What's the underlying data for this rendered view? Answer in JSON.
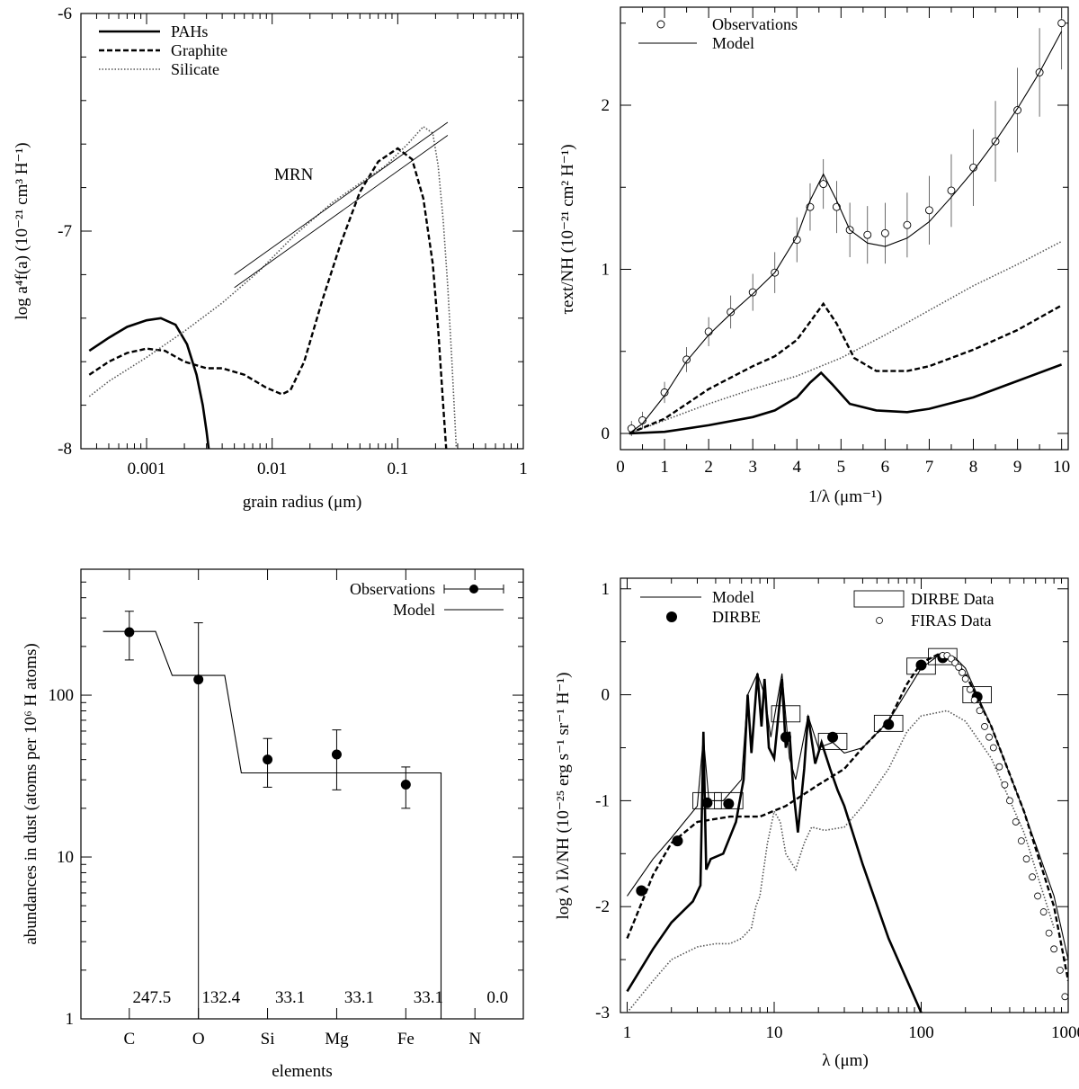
{
  "chart_data": [
    {
      "type": "line",
      "title": "",
      "xlabel": "grain radius  (μm)",
      "ylabel": "log  a⁴f(a)  (10⁻²¹ cm³ H⁻¹)",
      "x_scale": "log",
      "xlim": [
        0.0003,
        1
      ],
      "ylim": [
        -8,
        -6
      ],
      "x_ticks": [
        "0.001",
        "0.01",
        "0.1",
        "1"
      ],
      "y_ticks": [
        "-8",
        "-7",
        "-6"
      ],
      "legend_position": "top-left",
      "annotation": "MRN",
      "series": [
        {
          "name": "PAHs",
          "style": "solid-thick",
          "x": [
            0.00035,
            0.0005,
            0.0007,
            0.001,
            0.0013,
            0.0017,
            0.0021,
            0.0025,
            0.0028,
            0.003,
            0.0032,
            0.0034
          ],
          "y": [
            -7.55,
            -7.49,
            -7.44,
            -7.41,
            -7.4,
            -7.43,
            -7.52,
            -7.66,
            -7.8,
            -7.92,
            -8.05,
            -8.2
          ]
        },
        {
          "name": "Graphite",
          "style": "dashed",
          "x": [
            0.00035,
            0.0005,
            0.0007,
            0.001,
            0.0014,
            0.002,
            0.003,
            0.004,
            0.006,
            0.009,
            0.012,
            0.014,
            0.018,
            0.025,
            0.035,
            0.05,
            0.07,
            0.1,
            0.13,
            0.16,
            0.19,
            0.21,
            0.23,
            0.25,
            0.27
          ],
          "y": [
            -7.66,
            -7.6,
            -7.56,
            -7.54,
            -7.55,
            -7.6,
            -7.63,
            -7.63,
            -7.66,
            -7.72,
            -7.75,
            -7.73,
            -7.6,
            -7.32,
            -7.06,
            -6.82,
            -6.68,
            -6.62,
            -6.67,
            -6.85,
            -7.15,
            -7.45,
            -7.8,
            -8.1,
            -8.4
          ]
        },
        {
          "name": "Silicate",
          "style": "dotted",
          "x": [
            0.00035,
            0.0005,
            0.001,
            0.002,
            0.004,
            0.008,
            0.015,
            0.03,
            0.05,
            0.08,
            0.12,
            0.16,
            0.19,
            0.21,
            0.23,
            0.25,
            0.27,
            0.29,
            0.31
          ],
          "y": [
            -7.76,
            -7.69,
            -7.58,
            -7.46,
            -7.33,
            -7.18,
            -7.02,
            -6.87,
            -6.78,
            -6.7,
            -6.6,
            -6.52,
            -6.55,
            -6.7,
            -6.95,
            -7.25,
            -7.6,
            -7.95,
            -8.3
          ]
        },
        {
          "name": "MRN",
          "style": "thin-pair",
          "x": [
            0.005,
            0.25
          ],
          "y": [
            -7.26,
            -6.56
          ]
        }
      ]
    },
    {
      "type": "line",
      "title": "",
      "xlabel": "1/λ  (μm⁻¹)",
      "ylabel": "τext/NH  (10⁻²¹ cm² H⁻¹)",
      "xlim": [
        0,
        10
      ],
      "ylim": [
        0,
        2.6
      ],
      "x_ticks": [
        "0",
        "1",
        "2",
        "3",
        "4",
        "5",
        "6",
        "7",
        "8",
        "9",
        "10"
      ],
      "y_ticks": [
        "0",
        "1",
        "2"
      ],
      "legend_position": "top-left",
      "series": [
        {
          "name": "Observations",
          "style": "open-circles-with-errorbars",
          "x": [
            0.25,
            0.5,
            1.0,
            1.5,
            2.0,
            2.5,
            3.0,
            3.5,
            4.0,
            4.3,
            4.6,
            4.9,
            5.2,
            5.6,
            6.0,
            6.5,
            7.0,
            7.5,
            8.0,
            8.5,
            9.0,
            9.5,
            10.0
          ],
          "y": [
            0.03,
            0.08,
            0.25,
            0.45,
            0.62,
            0.74,
            0.86,
            0.98,
            1.18,
            1.38,
            1.52,
            1.38,
            1.24,
            1.21,
            1.22,
            1.27,
            1.36,
            1.48,
            1.62,
            1.78,
            1.97,
            2.2,
            2.5
          ]
        },
        {
          "name": "Model",
          "style": "solid-thin",
          "x": [
            0.2,
            0.5,
            1.0,
            1.5,
            2.0,
            2.5,
            3.0,
            3.5,
            4.0,
            4.3,
            4.6,
            4.9,
            5.2,
            5.6,
            6.0,
            6.5,
            7.0,
            7.5,
            8.0,
            8.5,
            9.0,
            9.5,
            10.0
          ],
          "y": [
            0.0,
            0.06,
            0.23,
            0.44,
            0.6,
            0.73,
            0.85,
            0.98,
            1.2,
            1.42,
            1.58,
            1.42,
            1.24,
            1.16,
            1.14,
            1.19,
            1.29,
            1.44,
            1.6,
            1.78,
            1.98,
            2.2,
            2.45
          ]
        },
        {
          "name": "Silicate",
          "style": "dotted",
          "x": [
            0.2,
            1,
            2,
            3,
            4,
            5,
            6,
            7,
            8,
            9,
            10
          ],
          "y": [
            0.0,
            0.08,
            0.18,
            0.27,
            0.35,
            0.46,
            0.6,
            0.75,
            0.9,
            1.03,
            1.17
          ]
        },
        {
          "name": "Graphite",
          "style": "dashed",
          "x": [
            0.2,
            1,
            2,
            3,
            3.5,
            4.0,
            4.3,
            4.6,
            4.9,
            5.3,
            5.8,
            6.5,
            7,
            8,
            9,
            10
          ],
          "y": [
            0.0,
            0.09,
            0.27,
            0.41,
            0.47,
            0.57,
            0.68,
            0.79,
            0.67,
            0.46,
            0.38,
            0.38,
            0.41,
            0.51,
            0.63,
            0.78
          ]
        },
        {
          "name": "PAHs",
          "style": "solid-thick",
          "x": [
            0.2,
            1,
            2,
            3,
            3.5,
            4.0,
            4.3,
            4.55,
            4.8,
            5.2,
            5.8,
            6.5,
            7,
            8,
            9,
            10
          ],
          "y": [
            0.0,
            0.01,
            0.05,
            0.1,
            0.14,
            0.22,
            0.31,
            0.37,
            0.3,
            0.18,
            0.14,
            0.13,
            0.15,
            0.22,
            0.32,
            0.42
          ]
        }
      ]
    },
    {
      "type": "scatter",
      "title": "",
      "xlabel": "elements",
      "ylabel": "abundances in dust  (atoms per 10⁶ H atoms)",
      "y_scale": "log",
      "ylim": [
        1,
        600
      ],
      "y_ticks": [
        "1",
        "10",
        "100"
      ],
      "categories": [
        "C",
        "O",
        "Si",
        "Mg",
        "Fe",
        "N"
      ],
      "legend_position": "top-right",
      "series": [
        {
          "name": "Observations",
          "style": "filled-circles-with-errorbars",
          "values": [
            245,
            125,
            40,
            43,
            28,
            null
          ],
          "err_low": [
            165,
            1,
            27,
            26,
            20,
            null
          ],
          "err_high": [
            330,
            280,
            54,
            61,
            36,
            null
          ]
        },
        {
          "name": "Model",
          "style": "step-line",
          "values": [
            247.5,
            132.4,
            33.1,
            33.1,
            33.1,
            0.0
          ]
        }
      ],
      "annotations": [
        "247.5",
        "132.4",
        "33.1",
        "33.1",
        "33.1",
        "0.0"
      ]
    },
    {
      "type": "line",
      "title": "",
      "xlabel": "λ  (μm)",
      "ylabel": "log  λ Iλ/NH  (10⁻²⁵ erg s⁻¹ sr⁻¹ H⁻¹)",
      "x_scale": "log",
      "xlim": [
        0.9,
        1000
      ],
      "ylim": [
        -3,
        1.1
      ],
      "x_ticks": [
        "1",
        "10",
        "100",
        "1000"
      ],
      "y_ticks": [
        "-3",
        "-2",
        "-1",
        "0",
        "1"
      ],
      "legend_position": "top",
      "series": [
        {
          "name": "Model",
          "style": "solid-thin",
          "x": [
            1,
            1.5,
            2,
            3,
            3.3,
            3.6,
            4.5,
            6,
            6.6,
            7.7,
            8.6,
            9.5,
            11.3,
            12.7,
            14,
            17,
            20,
            25,
            30,
            40,
            60,
            100,
            140,
            170,
            200,
            300,
            500,
            800,
            1000
          ],
          "y": [
            -1.9,
            -1.55,
            -1.35,
            -1.05,
            -0.4,
            -1.0,
            -1.0,
            -0.8,
            0.0,
            0.2,
            0.0,
            -0.4,
            0.2,
            -0.6,
            -0.8,
            -0.2,
            -0.5,
            -0.45,
            -0.55,
            -0.5,
            -0.25,
            0.25,
            0.4,
            0.35,
            0.25,
            -0.3,
            -1.1,
            -1.9,
            -2.5
          ]
        },
        {
          "name": "PAHs",
          "style": "solid-thick",
          "x": [
            1,
            1.5,
            2,
            2.8,
            3.15,
            3.3,
            3.45,
            3.7,
            4.5,
            5.5,
            6.2,
            6.6,
            7.0,
            7.7,
            8.2,
            8.6,
            9.2,
            10.0,
            11.3,
            12.0,
            12.7,
            13.5,
            14.5,
            16,
            17,
            19,
            21,
            24,
            27,
            30,
            40,
            60,
            100
          ],
          "y": [
            -2.8,
            -2.4,
            -2.15,
            -1.95,
            -1.8,
            -0.35,
            -1.65,
            -1.55,
            -1.5,
            -1.2,
            -0.8,
            0.0,
            -0.55,
            0.2,
            -0.3,
            0.15,
            -0.5,
            -0.6,
            0.15,
            -0.5,
            -0.35,
            -0.9,
            -1.3,
            -0.7,
            -0.2,
            -0.65,
            -0.45,
            -0.7,
            -0.9,
            -1.05,
            -1.6,
            -2.3,
            -3.0
          ]
        },
        {
          "name": "Graphite",
          "style": "dashed",
          "x": [
            1,
            1.5,
            2,
            3,
            5,
            8,
            12,
            20,
            30,
            40,
            60,
            80,
            100,
            130,
            160,
            200,
            300,
            500,
            800,
            1000
          ],
          "y": [
            -2.3,
            -1.7,
            -1.4,
            -1.2,
            -1.15,
            -1.15,
            -1.05,
            -0.85,
            -0.7,
            -0.5,
            -0.25,
            0.1,
            0.3,
            0.38,
            0.35,
            0.2,
            -0.3,
            -1.1,
            -2.0,
            -2.7
          ]
        },
        {
          "name": "Silicate",
          "style": "dotted",
          "x": [
            1,
            1.5,
            2,
            3,
            4,
            5,
            6,
            7,
            7.5,
            8,
            9,
            10,
            11,
            12,
            14,
            16,
            18,
            22,
            30,
            40,
            60,
            80,
            100,
            150,
            200,
            300,
            500,
            800
          ],
          "y": [
            -3.0,
            -2.7,
            -2.5,
            -2.38,
            -2.35,
            -2.35,
            -2.3,
            -2.2,
            -2.0,
            -1.9,
            -1.4,
            -1.1,
            -1.2,
            -1.5,
            -1.65,
            -1.4,
            -1.25,
            -1.28,
            -1.25,
            -1.05,
            -0.7,
            -0.35,
            -0.2,
            -0.15,
            -0.25,
            -0.6,
            -1.3,
            -2.2
          ]
        },
        {
          "name": "DIRBE",
          "style": "filled-circles",
          "x": [
            1.25,
            2.2,
            3.5,
            4.9,
            12,
            25,
            60,
            100,
            140,
            240
          ],
          "y": [
            -1.85,
            -1.38,
            -1.02,
            -1.03,
            -0.4,
            -0.4,
            -0.28,
            0.28,
            0.35,
            -0.02
          ]
        },
        {
          "name": "DIRBE Data",
          "style": "open-boxes",
          "x": [
            3.5,
            4.9,
            12,
            25,
            60,
            100,
            140,
            240
          ],
          "y": [
            -1.0,
            -1.0,
            -0.18,
            -0.44,
            -0.27,
            0.27,
            0.36,
            0.0
          ]
        },
        {
          "name": "FIRAS Data",
          "style": "open-circles",
          "x": [
            140,
            150,
            160,
            170,
            180,
            190,
            200,
            215,
            230,
            250,
            270,
            290,
            310,
            340,
            370,
            400,
            440,
            480,
            520,
            570,
            620,
            680,
            740,
            800,
            880,
            950
          ],
          "y": [
            0.37,
            0.37,
            0.34,
            0.3,
            0.26,
            0.21,
            0.15,
            0.05,
            -0.05,
            -0.15,
            -0.3,
            -0.4,
            -0.5,
            -0.68,
            -0.85,
            -1.0,
            -1.2,
            -1.38,
            -1.55,
            -1.72,
            -1.9,
            -2.05,
            -2.25,
            -2.4,
            -2.6,
            -2.85
          ]
        }
      ]
    }
  ]
}
